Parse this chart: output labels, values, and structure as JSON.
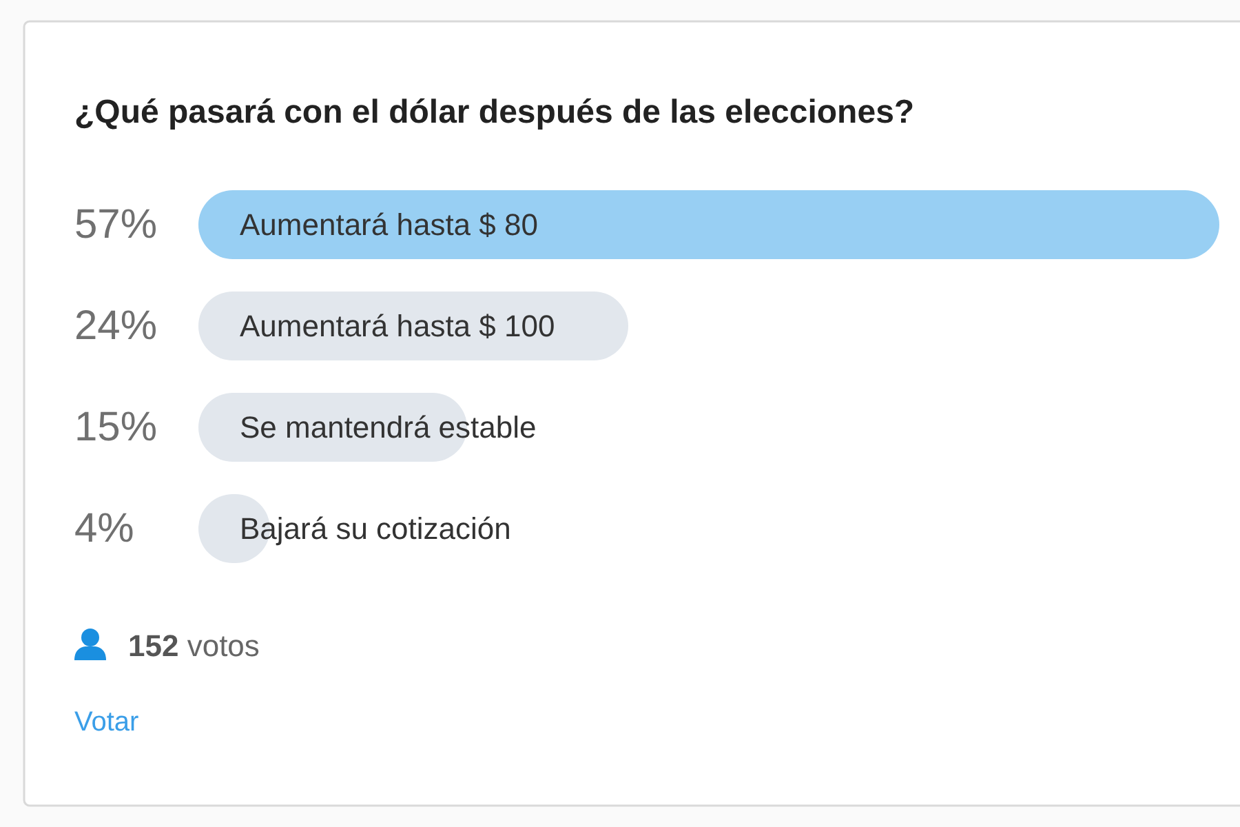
{
  "chart_data": {
    "type": "bar",
    "orientation": "horizontal",
    "title": "¿Qué pasará con el dólar después de las elecciones?",
    "categories": [
      "Aumentará hasta $ 80",
      "Aumentará hasta $ 100",
      "Se mantendrá estable",
      "Bajará su cotización"
    ],
    "values": [
      57,
      24,
      15,
      4
    ],
    "colors": [
      "#98cff3",
      "#e2e7ed",
      "#e2e7ed",
      "#e2e7ed"
    ],
    "value_labels": [
      "57%",
      "24%",
      "15%",
      "4%"
    ],
    "annotations": [
      "152 votos",
      "Votar"
    ]
  }
}
